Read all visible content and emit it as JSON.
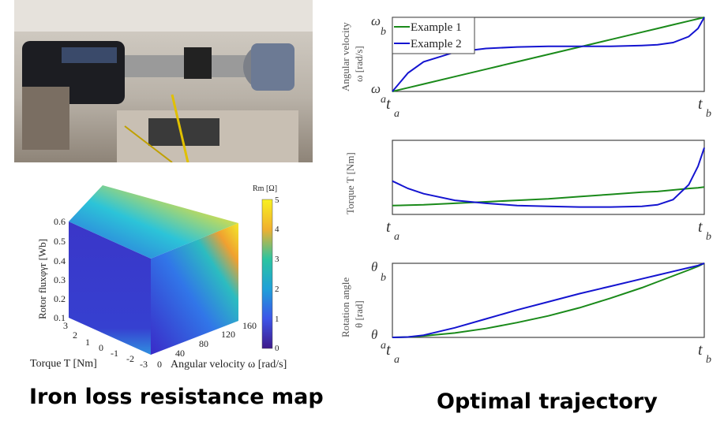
{
  "captions": {
    "left": "Iron loss resistance map",
    "right": "Optimal trajectory"
  },
  "photo": {
    "description_label": "Experimental test bench"
  },
  "cube": {
    "zlabel": "Rotor fluxφγr [Wb]",
    "xlabel": "Torque T [Nm]",
    "ylabel": "Angular velocity ω [rad/s]",
    "zticks": [
      "0.1",
      "0.2",
      "0.3",
      "0.4",
      "0.5",
      "0.6"
    ],
    "xticks": [
      "3",
      "2",
      "1",
      "0",
      "-1",
      "-2",
      "-3"
    ],
    "yticks": [
      "0",
      "40",
      "80",
      "120",
      "160"
    ],
    "colorbar_label": "Rm [Ω]",
    "colorbar_ticks": [
      "0",
      "1",
      "2",
      "3",
      "4",
      "5"
    ]
  },
  "chart_data": [
    {
      "type": "line",
      "ylabel": "Angular velocity ω [rad/s]",
      "ytick_top": "ωb",
      "ytick_bottom": "ωa",
      "xtick_left": "ta",
      "xtick_right": "tb",
      "legend": [
        "Example 1",
        "Example 2"
      ],
      "legend_position": "top-left",
      "x": [
        0,
        0.05,
        0.1,
        0.2,
        0.3,
        0.4,
        0.5,
        0.6,
        0.7,
        0.8,
        0.85,
        0.9,
        0.95,
        0.98,
        1
      ],
      "series": [
        {
          "name": "Example 1",
          "color": "#1a8a1a",
          "values": [
            0,
            0.05,
            0.1,
            0.2,
            0.3,
            0.4,
            0.5,
            0.6,
            0.7,
            0.8,
            0.85,
            0.9,
            0.95,
            0.98,
            1
          ]
        },
        {
          "name": "Example 2",
          "color": "#1414d0",
          "values": [
            0,
            0.25,
            0.4,
            0.53,
            0.58,
            0.6,
            0.61,
            0.61,
            0.61,
            0.62,
            0.63,
            0.66,
            0.74,
            0.85,
            1
          ]
        }
      ]
    },
    {
      "type": "line",
      "ylabel": "Torque T [Nm]",
      "xtick_left": "ta",
      "xtick_right": "tb",
      "x": [
        0,
        0.05,
        0.1,
        0.2,
        0.3,
        0.4,
        0.5,
        0.6,
        0.7,
        0.8,
        0.85,
        0.9,
        0.95,
        0.98,
        1
      ],
      "series": [
        {
          "name": "Example 1",
          "color": "#1a8a1a",
          "values": [
            0.12,
            0.125,
            0.13,
            0.15,
            0.17,
            0.19,
            0.21,
            0.24,
            0.27,
            0.3,
            0.31,
            0.33,
            0.35,
            0.36,
            0.37
          ]
        },
        {
          "name": "Example 2",
          "color": "#1414d0",
          "values": [
            0.45,
            0.35,
            0.28,
            0.19,
            0.15,
            0.12,
            0.11,
            0.1,
            0.1,
            0.11,
            0.13,
            0.2,
            0.4,
            0.65,
            0.9
          ]
        }
      ]
    },
    {
      "type": "line",
      "ylabel": "Rotation angle θ [rad]",
      "ytick_top": "θb",
      "ytick_bottom": "θa",
      "xtick_left": "ta",
      "xtick_right": "tb",
      "x": [
        0,
        0.05,
        0.1,
        0.2,
        0.3,
        0.4,
        0.5,
        0.6,
        0.7,
        0.8,
        0.85,
        0.9,
        0.95,
        0.98,
        1
      ],
      "series": [
        {
          "name": "Example 1",
          "color": "#1a8a1a",
          "values": [
            0,
            0.005,
            0.02,
            0.06,
            0.12,
            0.2,
            0.29,
            0.4,
            0.53,
            0.67,
            0.75,
            0.83,
            0.91,
            0.96,
            1
          ]
        },
        {
          "name": "Example 2",
          "color": "#1414d0",
          "values": [
            0,
            0.005,
            0.03,
            0.13,
            0.25,
            0.37,
            0.48,
            0.59,
            0.69,
            0.79,
            0.84,
            0.89,
            0.94,
            0.97,
            1
          ]
        }
      ]
    }
  ]
}
